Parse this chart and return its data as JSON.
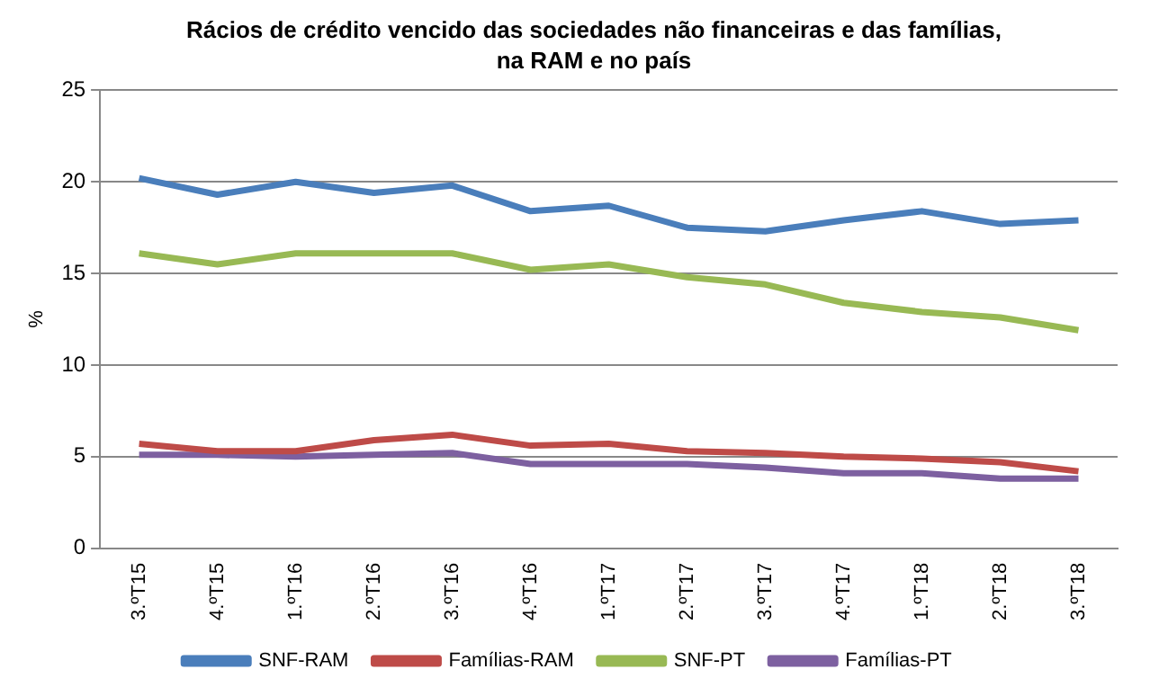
{
  "chart_data": {
    "type": "line",
    "title": "Rácios de crédito vencido das sociedades não financeiras e das famílias, na RAM e no país",
    "ylabel": "%",
    "categories": [
      "3.ºT15",
      "4.ºT15",
      "1.ºT16",
      "2.ºT16",
      "3.ºT16",
      "4.ºT16",
      "1.ºT17",
      "2.ºT17",
      "3.ºT17",
      "4.ºT17",
      "1.ºT18",
      "2.ºT18",
      "3.ºT18"
    ],
    "series": [
      {
        "name": "SNF-RAM",
        "color": "#4a7ebb",
        "values": [
          20.2,
          19.3,
          20.0,
          19.4,
          19.8,
          18.4,
          18.7,
          17.5,
          17.3,
          17.9,
          18.4,
          17.7,
          17.9
        ]
      },
      {
        "name": "Famílias-RAM",
        "color": "#be4b48",
        "values": [
          5.7,
          5.3,
          5.3,
          5.9,
          6.2,
          5.6,
          5.7,
          5.3,
          5.2,
          5.0,
          4.9,
          4.7,
          4.2
        ]
      },
      {
        "name": "SNF-PT",
        "color": "#98b954",
        "values": [
          16.1,
          15.5,
          16.1,
          16.1,
          16.1,
          15.2,
          15.5,
          14.8,
          14.4,
          13.4,
          12.9,
          12.6,
          11.9
        ]
      },
      {
        "name": "Famílias-PT",
        "color": "#7d60a0",
        "values": [
          5.1,
          5.1,
          5.0,
          5.1,
          5.2,
          4.6,
          4.6,
          4.6,
          4.4,
          4.1,
          4.1,
          3.8,
          3.8
        ]
      }
    ],
    "ylim": [
      0,
      25
    ],
    "yticks": [
      0,
      5,
      10,
      15,
      20,
      25
    ],
    "grid": "y",
    "legend": "bottom",
    "marker": "none",
    "line_style": "solid"
  }
}
